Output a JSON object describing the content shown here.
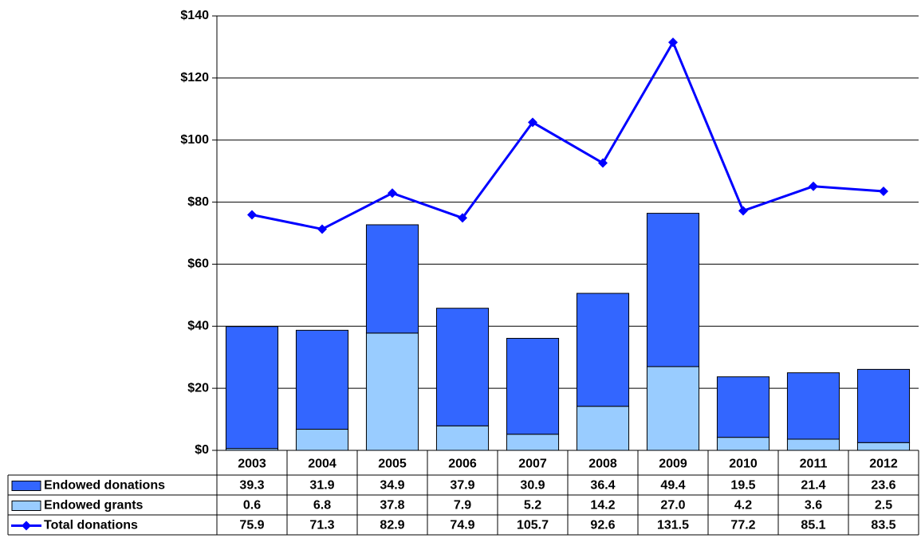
{
  "chart_data": {
    "type": "bar",
    "categories": [
      "2003",
      "2004",
      "2005",
      "2006",
      "2007",
      "2008",
      "2009",
      "2010",
      "2011",
      "2012"
    ],
    "series": [
      {
        "name": "Endowed donations",
        "color": "#3366ff",
        "values": [
          39.3,
          31.9,
          34.9,
          37.9,
          30.9,
          36.4,
          49.4,
          19.5,
          21.4,
          23.6
        ]
      },
      {
        "name": "Endowed grants",
        "color": "#99ccff",
        "values": [
          0.6,
          6.8,
          37.8,
          7.9,
          5.2,
          14.2,
          27.0,
          4.2,
          3.6,
          2.5
        ],
        "value_labels": [
          "0.6",
          "6.8",
          "37.8",
          "7.9",
          "5.2",
          "14.2",
          "27.0",
          "4.2",
          "3.6",
          "2.5"
        ]
      },
      {
        "name": "Total donations",
        "type": "line",
        "color": "#0000ff",
        "values": [
          75.9,
          71.3,
          82.9,
          74.9,
          105.7,
          92.6,
          131.5,
          77.2,
          85.1,
          83.5
        ]
      }
    ],
    "stacked": true,
    "ylim": [
      0,
      140
    ],
    "yticks": [
      {
        "value": 0,
        "label": "$0"
      },
      {
        "value": 20,
        "label": "$20"
      },
      {
        "value": 40,
        "label": "$40"
      },
      {
        "value": 60,
        "label": "$60"
      },
      {
        "value": 80,
        "label": "$80"
      },
      {
        "value": 100,
        "label": "$100"
      },
      {
        "value": 120,
        "label": "$120"
      },
      {
        "value": 140,
        "label": "$140"
      }
    ],
    "grid": true
  }
}
